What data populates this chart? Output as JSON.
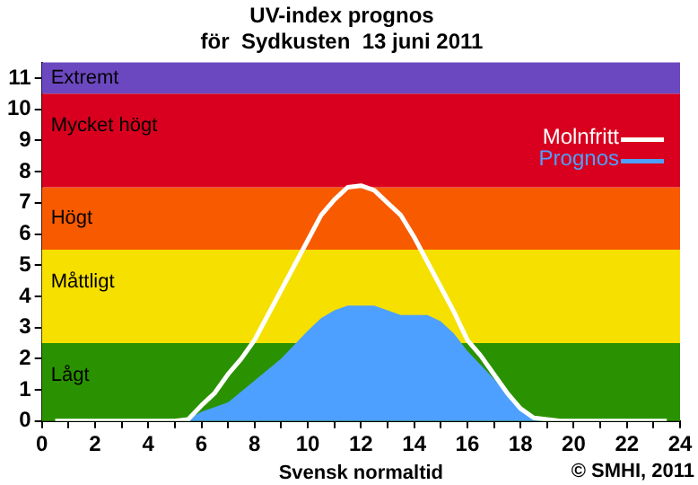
{
  "chart_data": {
    "type": "line",
    "title": "UV-index prognos",
    "subtitle": "för  Sydkusten  13 juni 2011",
    "xlabel": "Svensk normaltid",
    "annotations": [
      "© SMHI, 2011"
    ],
    "xlim": [
      0,
      24
    ],
    "xticks": [
      0,
      {
        "value": 1,
        "label": null
      },
      2,
      {
        "value": 3,
        "label": null
      },
      4,
      {
        "value": 5,
        "label": null
      },
      6,
      {
        "value": 7,
        "label": null
      },
      8,
      {
        "value": 9,
        "label": null
      },
      10,
      {
        "value": 11,
        "label": null
      },
      12,
      {
        "value": 13,
        "label": null
      },
      14,
      {
        "value": 15,
        "label": null
      },
      16,
      {
        "value": 17,
        "label": null
      },
      18,
      {
        "value": 19,
        "label": null
      },
      20,
      {
        "value": 21,
        "label": null
      },
      22,
      {
        "value": 23,
        "label": null
      },
      24
    ],
    "ylim": [
      0,
      11.5
    ],
    "yticks": [
      0,
      1,
      2,
      3,
      4,
      5,
      6,
      7,
      8,
      9,
      10,
      11
    ],
    "bands": [
      {
        "axis": "y",
        "from": 0,
        "to": 2.5,
        "label": "Lågt",
        "color": "#2a9200"
      },
      {
        "axis": "y",
        "from": 2.5,
        "to": 5.5,
        "label": "Måttligt",
        "color": "#f5e000"
      },
      {
        "axis": "y",
        "from": 5.5,
        "to": 7.5,
        "label": "Högt",
        "color": "#f85a00"
      },
      {
        "axis": "y",
        "from": 7.5,
        "to": 10.5,
        "label": "Mycket högt",
        "color": "#d8001e"
      },
      {
        "axis": "y",
        "from": 10.5,
        "to": 11.5,
        "label": "Extremt",
        "color": "#6c48c0"
      }
    ],
    "series": [
      {
        "name": "Prognos",
        "type": "area",
        "color": "#4da0ff",
        "x": [
          5.4,
          6,
          7,
          8,
          9,
          10,
          10.5,
          11,
          11.5,
          12.5,
          13,
          13.5,
          14.5,
          15,
          15.5,
          16,
          16.5,
          17,
          17.5,
          18,
          18.5,
          18.8
        ],
        "values": [
          0,
          0.3,
          0.6,
          1.3,
          2.0,
          2.9,
          3.3,
          3.55,
          3.7,
          3.7,
          3.55,
          3.4,
          3.4,
          3.2,
          2.8,
          2.25,
          1.8,
          1.35,
          0.85,
          0.4,
          0.1,
          0
        ]
      },
      {
        "name": "Molnfritt",
        "type": "line",
        "color": "#ffffff",
        "x": [
          0.5,
          5,
          5.5,
          6,
          6.5,
          7,
          7.5,
          8,
          8.5,
          9,
          9.5,
          10,
          10.5,
          11,
          11.5,
          12,
          12.5,
          13,
          13.5,
          14,
          14.5,
          15,
          15.5,
          16,
          16.5,
          17,
          17.5,
          18,
          18.5,
          19,
          19.5,
          23.5
        ],
        "values": [
          0,
          0,
          0.05,
          0.5,
          0.9,
          1.5,
          2.0,
          2.6,
          3.4,
          4.2,
          5.0,
          5.8,
          6.6,
          7.1,
          7.5,
          7.55,
          7.4,
          7.0,
          6.6,
          5.9,
          5.1,
          4.3,
          3.5,
          2.6,
          2.1,
          1.5,
          0.9,
          0.4,
          0.1,
          0.05,
          0,
          0
        ]
      }
    ],
    "legend": "top right",
    "grid": false,
    "marker": "none",
    "line_style": "solid"
  }
}
